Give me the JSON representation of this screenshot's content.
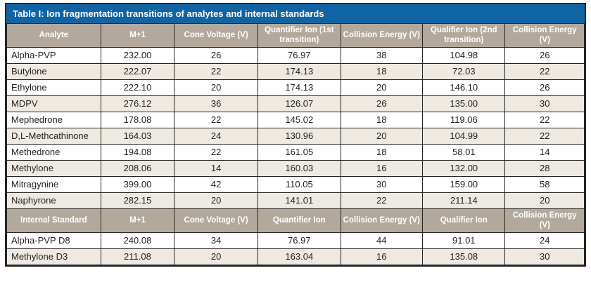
{
  "title": {
    "prefix": "Table I",
    "rest": ": Ion fragmentation transitions of analytes and internal standards"
  },
  "analytes": {
    "headers": [
      "Analyte",
      "M+1",
      "Cone Voltage (V)",
      "Quantifier Ion (1st transition)",
      "Collision Energy (V)",
      "Qualifier Ion (2nd transition)",
      "Collision Energy (V)"
    ],
    "rows": [
      [
        "Alpha-PVP",
        "232.00",
        "26",
        "76.97",
        "38",
        "104.98",
        "26"
      ],
      [
        "Butylone",
        "222.07",
        "22",
        "174.13",
        "18",
        "72.03",
        "22"
      ],
      [
        "Ethylone",
        "222.10",
        "20",
        "174.13",
        "20",
        "146.10",
        "26"
      ],
      [
        "MDPV",
        "276.12",
        "36",
        "126.07",
        "26",
        "135.00",
        "30"
      ],
      [
        "Mephedrone",
        "178.08",
        "22",
        "145.02",
        "18",
        "119.06",
        "22"
      ],
      [
        "D,L-Methcathinone",
        "164.03",
        "24",
        "130.96",
        "20",
        "104.99",
        "22"
      ],
      [
        "Methedrone",
        "194.08",
        "22",
        "161.05",
        "18",
        "58.01",
        "14"
      ],
      [
        "Methylone",
        "208.06",
        "14",
        "160.03",
        "16",
        "132.00",
        "28"
      ],
      [
        "Mitragynine",
        "399.00",
        "42",
        "110.05",
        "30",
        "159.00",
        "58"
      ],
      [
        "Naphyrone",
        "282.15",
        "20",
        "141.01",
        "22",
        "211.14",
        "20"
      ]
    ]
  },
  "standards": {
    "headers": [
      "Internal Standard",
      "M+1",
      "Cone Voltage (V)",
      "Quantifier Ion",
      "Collision Energy (V)",
      "Qualifier Ion",
      "Collision Energy (V)"
    ],
    "rows": [
      [
        "Alpha-PVP D8",
        "240.08",
        "34",
        "76.97",
        "44",
        "91.01",
        "24"
      ],
      [
        "Methylone D3",
        "211.08",
        "20",
        "163.04",
        "16",
        "135.08",
        "30"
      ]
    ]
  },
  "colors": {
    "title_bar": "#1164a4",
    "header_bg": "#b2a99c",
    "row_bg": "#ffffff",
    "row_alt_bg": "#eeeae2",
    "border": "#262424",
    "text": "#231f20",
    "header_text": "#ffffff"
  }
}
